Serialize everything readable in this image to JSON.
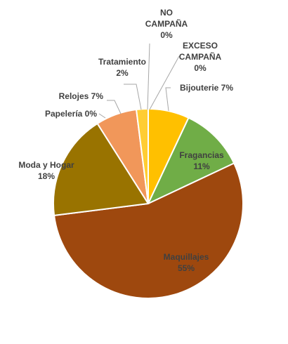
{
  "chart_data": {
    "type": "pie",
    "title": "",
    "slices": [
      {
        "name": "Bijouterie",
        "value": 7,
        "value_label": "7%",
        "color": "#ffc000"
      },
      {
        "name": "Fragancias",
        "value": 11,
        "value_label": "11%",
        "color": "#70ad47"
      },
      {
        "name": "Maquillajes",
        "value": 55,
        "value_label": "55%",
        "color": "#9e480e"
      },
      {
        "name": "Moda y Hogar",
        "value": 18,
        "value_label": "18%",
        "color": "#997300"
      },
      {
        "name": "Papelería",
        "value": 0,
        "value_label": "0%",
        "color": "#5b9bd5"
      },
      {
        "name": "Relojes",
        "value": 7,
        "value_label": "7%",
        "color": "#f1975a"
      },
      {
        "name": "Tratamiento",
        "value": 2,
        "value_label": "2%",
        "color": "#ffcd33"
      },
      {
        "name": "NO CAMPAÑA",
        "value": 0,
        "value_label": "0%",
        "color": "#ed7d31"
      },
      {
        "name": "EXCESO CAMPAÑA",
        "value": 0,
        "value_label": "0%",
        "color": "#a5a5a5"
      }
    ],
    "data_labels": [
      {
        "lines": [
          "Bijouterie 7%"
        ]
      },
      {
        "lines": [
          "Fragancias",
          "11%"
        ]
      },
      {
        "lines": [
          "Maquillajes",
          "55%"
        ]
      },
      {
        "lines": [
          "Moda y Hogar",
          "18%"
        ]
      },
      {
        "lines": [
          "Papelería 0%"
        ]
      },
      {
        "lines": [
          "Relojes 7%"
        ]
      },
      {
        "lines": [
          "Tratamiento",
          "2%"
        ]
      },
      {
        "lines": [
          "NO",
          "CAMPAÑA",
          "0%"
        ]
      },
      {
        "lines": [
          "EXCESO",
          "CAMPAÑA",
          "0%"
        ]
      }
    ]
  }
}
